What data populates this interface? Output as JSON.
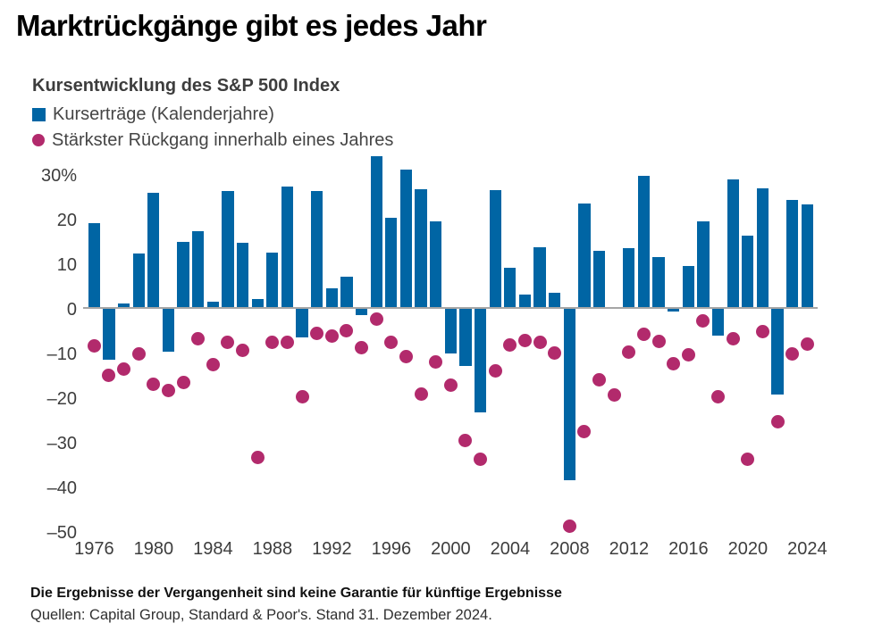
{
  "title": "Marktrückgänge gibt es jedes Jahr",
  "chart": {
    "subtitle": "Kursentwicklung des S&P 500 Index",
    "legend": [
      {
        "label": "Kurserträge (Kalenderjahre)",
        "marker": "square",
        "color": "#0065A4"
      },
      {
        "label": "Stärkster Rückgang innerhalb eines Jahres",
        "marker": "circle",
        "color": "#B22A6C"
      }
    ]
  },
  "footer": {
    "disclaimer": "Die Ergebnisse der Vergangenheit sind keine Garantie für künftige Ergebnisse",
    "sources": "Quellen: Capital Group, Standard & Poor's. Stand 31. Dezember 2024."
  },
  "chart_data": {
    "type": "bar",
    "title": "Kursentwicklung des S&P 500 Index",
    "categories": [
      1976,
      1977,
      1978,
      1979,
      1980,
      1981,
      1982,
      1983,
      1984,
      1985,
      1986,
      1987,
      1988,
      1989,
      1990,
      1991,
      1992,
      1993,
      1994,
      1995,
      1996,
      1997,
      1998,
      1999,
      2000,
      2001,
      2002,
      2003,
      2004,
      2005,
      2006,
      2007,
      2008,
      2009,
      2010,
      2011,
      2012,
      2013,
      2014,
      2015,
      2016,
      2017,
      2018,
      2019,
      2020,
      2021,
      2022,
      2023,
      2024
    ],
    "series": [
      {
        "name": "Kurserträge (Kalenderjahre)",
        "type": "bar",
        "color": "#0065A4",
        "values": [
          19.1,
          -11.5,
          1.1,
          12.3,
          25.8,
          -9.7,
          14.8,
          17.3,
          1.4,
          26.3,
          14.6,
          2.0,
          12.4,
          27.3,
          -6.6,
          26.3,
          4.5,
          7.1,
          -1.5,
          34.1,
          20.3,
          31.0,
          26.7,
          19.5,
          -10.1,
          -13.0,
          -23.4,
          26.4,
          9.0,
          3.0,
          13.6,
          3.5,
          -38.5,
          23.5,
          12.8,
          0.0,
          13.4,
          29.6,
          11.4,
          -0.7,
          9.5,
          19.4,
          -6.2,
          28.9,
          16.3,
          26.9,
          -19.4,
          24.2,
          23.3
        ]
      },
      {
        "name": "Stärkster Rückgang innerhalb eines Jahres",
        "type": "scatter",
        "color": "#B22A6C",
        "values": [
          -8.4,
          -15.0,
          -13.6,
          -10.2,
          -17.1,
          -18.4,
          -16.6,
          -6.9,
          -12.7,
          -7.7,
          -9.4,
          -33.5,
          -7.6,
          -7.6,
          -19.9,
          -5.7,
          -6.2,
          -5.0,
          -8.9,
          -2.5,
          -7.6,
          -10.8,
          -19.3,
          -12.1,
          -17.2,
          -29.7,
          -33.8,
          -14.1,
          -8.2,
          -7.2,
          -7.7,
          -10.1,
          -48.8,
          -27.6,
          -16.0,
          -19.4,
          -9.9,
          -5.8,
          -7.4,
          -12.4,
          -10.5,
          -2.8,
          -19.8,
          -6.8,
          -33.9,
          -5.2,
          -25.4,
          -10.3,
          -8.0
        ]
      }
    ],
    "xlabel": "",
    "ylabel": "",
    "ylim": [
      -52,
      36
    ],
    "ytick_values": [
      30,
      20,
      10,
      0,
      -10,
      -20,
      -30,
      -40,
      -50
    ],
    "ytick_labels": [
      "30%",
      "20",
      "10",
      "0",
      "–10",
      "–20",
      "–30",
      "–40",
      "–50"
    ],
    "xtick_years": [
      1976,
      1980,
      1984,
      1988,
      1992,
      1996,
      2000,
      2004,
      2008,
      2012,
      2016,
      2020,
      2024
    ],
    "grid": false,
    "legend_position": "top-left",
    "axis_line_color": "#A6A6A6"
  }
}
